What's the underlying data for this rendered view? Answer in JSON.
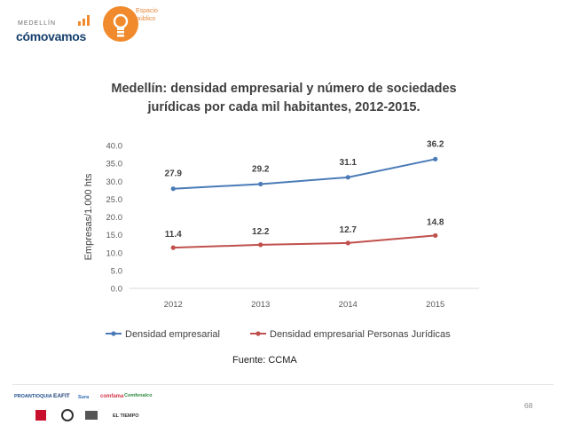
{
  "header": {
    "medellin_small": "MEDELLÍN",
    "medellin_brand": "cómovamos",
    "espacio_line1": "Espacio",
    "espacio_line2": "público"
  },
  "chart_data": {
    "type": "line",
    "title": "Medellín: densidad empresarial y número de sociedades jurídicas por cada mil habitantes, 2012-2015.",
    "title_line1": "Medellín: densidad empresarial y número de sociedades",
    "title_line2": "jurídicas por cada mil habitantes, 2012-2015.",
    "categories": [
      "2012",
      "2013",
      "2014",
      "2015"
    ],
    "ylabel": "Empresas/1.000 hts",
    "xlabel": "",
    "ylim": [
      0,
      40
    ],
    "yticks": [
      "0.0",
      "5.0",
      "10.0",
      "15.0",
      "20.0",
      "25.0",
      "30.0",
      "35.0",
      "40.0"
    ],
    "grid": false,
    "legend_position": "bottom",
    "series": [
      {
        "name": "Densidad empresarial",
        "values": [
          27.9,
          29.2,
          31.1,
          36.2
        ],
        "labels": [
          "27.9",
          "29.2",
          "31.1",
          "36.2"
        ],
        "color": "#4a7bb7"
      },
      {
        "name": "Densidad empresarial Personas Jurídicas",
        "values": [
          11.4,
          12.2,
          12.7,
          14.8
        ],
        "labels": [
          "11.4",
          "12.2",
          "12.7",
          "14.8"
        ],
        "color": "#c0504d"
      }
    ]
  },
  "source": "Fuente: CCMA",
  "page_number": "68",
  "footer_logos": [
    "PROANTIOQUIA",
    "EAFIT",
    "Sura",
    "comfama",
    "Comfenalco",
    "EL TIEMPO"
  ],
  "colors": {
    "brand_blue": "#17406d",
    "brand_orange": "#f08a2c"
  }
}
